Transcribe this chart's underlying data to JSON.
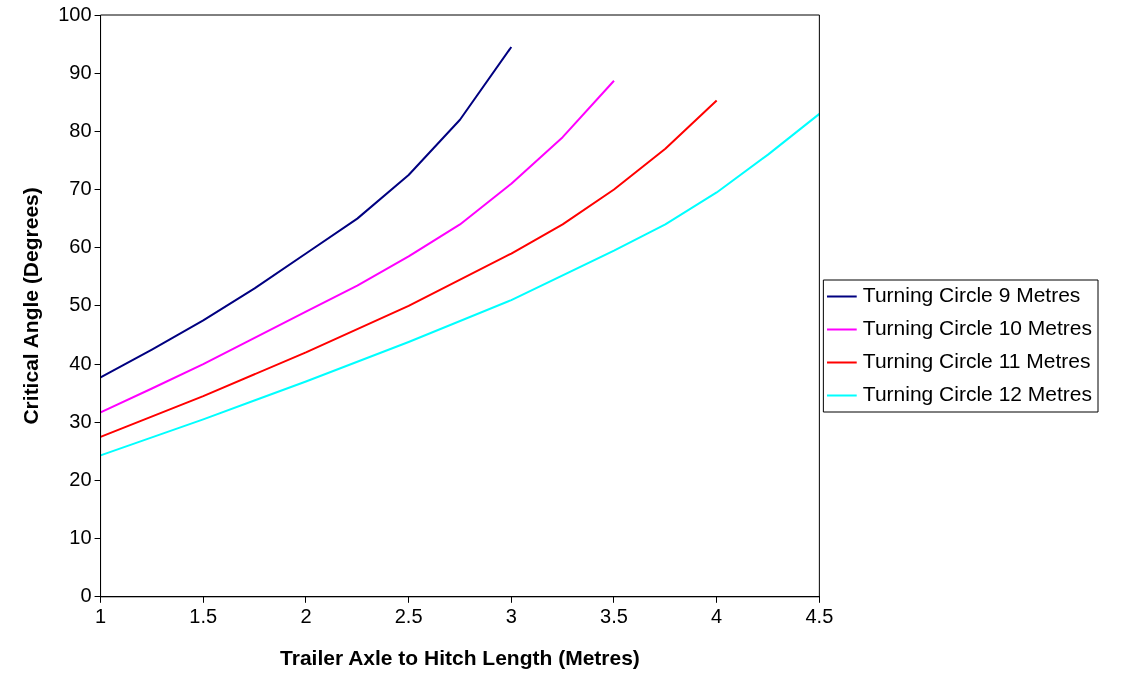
{
  "chart_data": {
    "type": "line",
    "xlabel": "Trailer Axle to Hitch Length (Metres)",
    "ylabel": "Critical Angle (Degrees)",
    "xlim": [
      1,
      4.5
    ],
    "xticks": [
      1,
      1.5,
      2,
      2.5,
      3,
      3.5,
      4,
      4.5
    ],
    "ylim": [
      0,
      100
    ],
    "yticks": [
      0,
      10,
      20,
      30,
      40,
      50,
      60,
      70,
      80,
      90,
      100
    ],
    "grid": false,
    "legend": "right",
    "marker": "none",
    "line_style": "solid",
    "series": [
      {
        "name": "Turning Circle 9 Metres",
        "color": "#000080",
        "x": [
          1,
          1.25,
          1.5,
          1.75,
          2,
          2.25,
          2.5,
          2.75,
          3
        ],
        "values": [
          37.7,
          42.5,
          47.5,
          53,
          59,
          65,
          72.5,
          82,
          94.5
        ]
      },
      {
        "name": "Turning Circle 10 Metres",
        "color": "#ff00ff",
        "x": [
          1,
          1.25,
          1.5,
          1.75,
          2,
          2.25,
          2.5,
          2.75,
          3,
          3.25,
          3.5
        ],
        "values": [
          31.7,
          35.8,
          40,
          44.5,
          49,
          53.5,
          58.5,
          64,
          71,
          79,
          88.7
        ]
      },
      {
        "name": "Turning Circle 11 Metres",
        "color": "#ff0000",
        "x": [
          1,
          1.5,
          2,
          2.5,
          3,
          3.25,
          3.5,
          3.75,
          4
        ],
        "values": [
          27.5,
          34.5,
          42,
          50,
          59,
          64,
          70,
          77,
          85.3
        ]
      },
      {
        "name": "Turning Circle 12 Metres",
        "color": "#00ffff",
        "x": [
          1,
          1.5,
          2,
          2.5,
          3,
          3.5,
          3.75,
          4,
          4.25,
          4.5
        ],
        "values": [
          24.3,
          30.5,
          37,
          43.8,
          51,
          59.5,
          64,
          69.5,
          76,
          83
        ]
      }
    ]
  }
}
